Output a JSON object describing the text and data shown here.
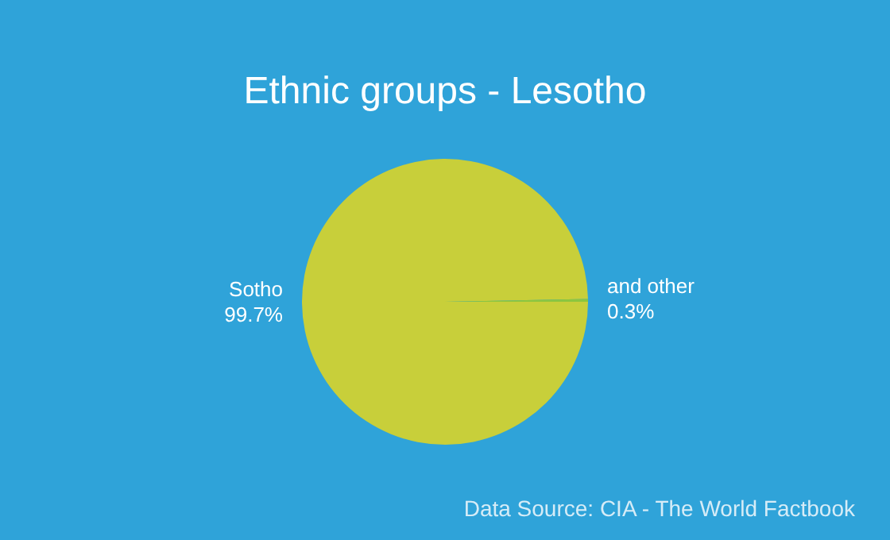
{
  "chart_data": {
    "type": "pie",
    "title": "Ethnic groups - Lesotho",
    "categories": [
      "Sotho",
      "and other"
    ],
    "values": [
      99.7,
      0.3
    ],
    "colors": [
      "#c8cf3a",
      "#8cc63f"
    ],
    "value_labels": [
      "99.7%",
      "0.3%"
    ],
    "legend": false,
    "annotations": [
      "Data Source: CIA - The World Factbook"
    ]
  }
}
